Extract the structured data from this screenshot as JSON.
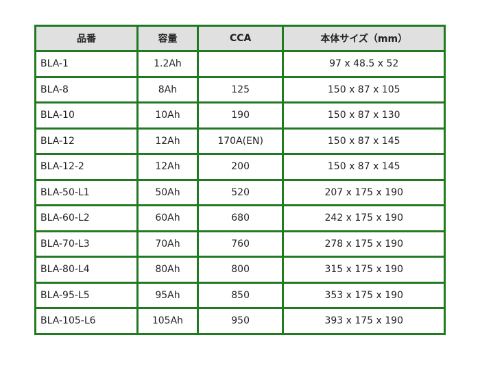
{
  "colors": {
    "border": "#217a21",
    "header_bg": "#e0e0e0"
  },
  "headers": [
    "品番",
    "容量",
    "CCA",
    "本体サイズ（mm）"
  ],
  "rows": [
    [
      "BLA-1",
      "1.2Ah",
      "",
      "97 x 48.5 x 52"
    ],
    [
      "BLA-8",
      "8Ah",
      "125",
      "150 x 87 x 105"
    ],
    [
      "BLA-10",
      "10Ah",
      "190",
      "150 x 87 x 130"
    ],
    [
      "BLA-12",
      "12Ah",
      "170A(EN)",
      "150 x 87 x 145"
    ],
    [
      "BLA-12-2",
      "12Ah",
      "200",
      "150 x 87 x 145"
    ],
    [
      "BLA-50-L1",
      "50Ah",
      "520",
      "207 x 175 x 190"
    ],
    [
      "BLA-60-L2",
      "60Ah",
      "680",
      "242 x 175 x 190"
    ],
    [
      "BLA-70-L3",
      "70Ah",
      "760",
      "278 x 175 x 190"
    ],
    [
      "BLA-80-L4",
      "80Ah",
      "800",
      "315 x 175 x 190"
    ],
    [
      "BLA-95-L5",
      "95Ah",
      "850",
      "353 x 175 x 190"
    ],
    [
      "BLA-105-L6",
      "105Ah",
      "950",
      "393 x 175 x 190"
    ]
  ]
}
